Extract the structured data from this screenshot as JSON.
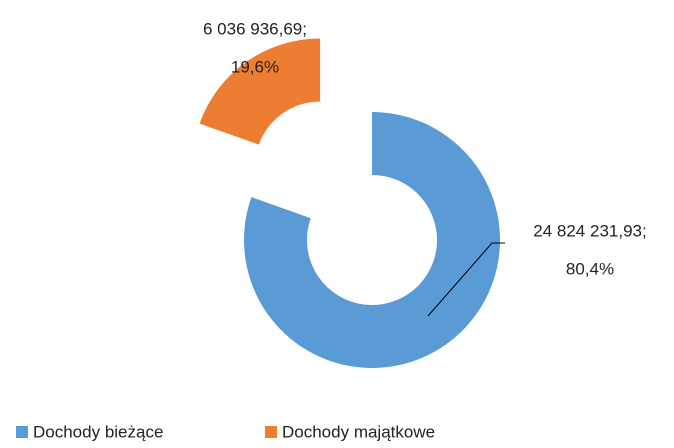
{
  "chart_data": {
    "type": "donut",
    "categories": [
      "Dochody bieżące",
      "Dochody majątkowe"
    ],
    "values": [
      24824231.93,
      6036936.69
    ],
    "value_labels": [
      "24 824 231,93;",
      "6 036 936,69;"
    ],
    "percents": [
      80.4,
      19.6
    ],
    "percent_labels": [
      "80,4%",
      "19,6%"
    ],
    "colors": [
      "#5b9bd5",
      "#ed7d31"
    ],
    "legend": "bottom"
  }
}
